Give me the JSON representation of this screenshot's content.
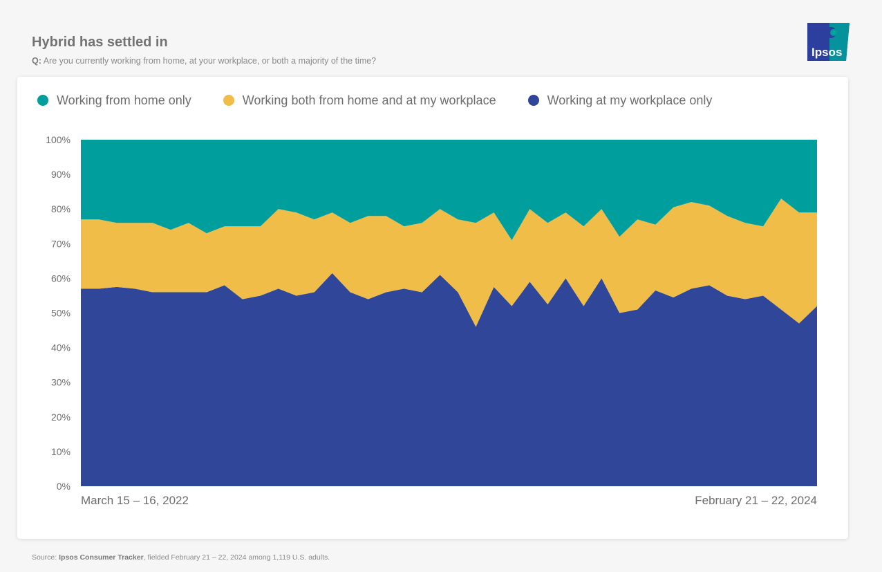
{
  "header": {
    "title": "Hybrid has settled in",
    "question_prefix": "Q:",
    "question_text": "Are you currently working from home, at your workplace, or both a majority of the time?"
  },
  "logo": {
    "text": "Ipsos",
    "color": "#00989b",
    "accent": "#2c3e9e"
  },
  "legend": [
    {
      "label": "Working from home only",
      "color": "#009e9d"
    },
    {
      "label": "Working both from home and at my workplace",
      "color": "#f0bd48"
    },
    {
      "label": "Working at my workplace only",
      "color": "#304699"
    }
  ],
  "footer": {
    "prefix": "Source:",
    "source_name": "Ipsos Consumer Tracker",
    "rest": ", fielded February 21 – 22, 2024 among 1,119 U.S. adults."
  },
  "chart_data": {
    "type": "area",
    "stacked": true,
    "ylim": [
      0,
      100
    ],
    "yticks": [
      "0%",
      "10%",
      "20%",
      "30%",
      "40%",
      "50%",
      "60%",
      "70%",
      "80%",
      "90%",
      "100%"
    ],
    "x_first_label": "March 15 – 16, 2022",
    "x_last_label": "February 21 – 22, 2024",
    "grid": false,
    "legend_position": "top-left",
    "series": [
      {
        "name": "Working at my workplace only",
        "color": "#304699",
        "values": [
          57,
          57,
          57.5,
          57,
          56,
          56,
          56,
          56,
          58,
          54,
          55,
          57,
          55,
          56,
          61.5,
          56,
          54,
          56,
          57,
          56,
          61,
          56,
          46,
          57.5,
          52,
          59,
          52.5,
          60,
          52,
          60,
          50,
          51,
          56.5,
          54.5,
          57,
          58,
          55,
          54,
          55,
          51,
          47,
          52
        ]
      },
      {
        "name": "Working both from home and at my workplace",
        "color": "#f0bd48",
        "values": [
          20,
          20,
          18.5,
          19,
          20,
          18,
          20,
          17,
          17,
          21,
          20,
          23,
          24,
          21,
          17.5,
          20,
          24,
          22,
          18,
          20,
          19,
          21,
          30,
          21.5,
          19,
          21,
          23.5,
          19,
          23,
          20,
          22,
          26,
          19,
          26,
          25,
          23,
          23,
          22,
          20,
          32,
          32,
          27
        ]
      },
      {
        "name": "Working from home only",
        "color": "#009e9d",
        "values": [
          23,
          23,
          24,
          24,
          24,
          26,
          24,
          27,
          25,
          25,
          25,
          20,
          21,
          23,
          21,
          24,
          22,
          22,
          25,
          24,
          20,
          23,
          24,
          21,
          29,
          20,
          24,
          21,
          25,
          20,
          28,
          23,
          24.5,
          19.5,
          18,
          19,
          22,
          24,
          25,
          17,
          21,
          21
        ]
      }
    ]
  }
}
